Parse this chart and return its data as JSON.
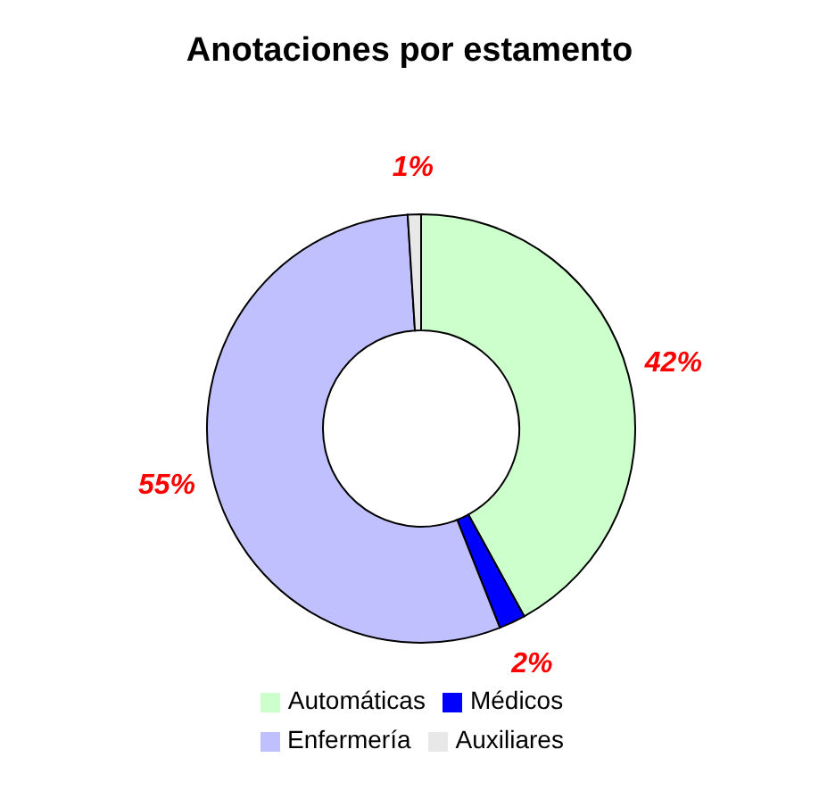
{
  "chart_data": {
    "type": "donut",
    "title": "Anotaciones por estamento",
    "categories": [
      "Automáticas",
      "Médicos",
      "Enfermería",
      "Auxiliares"
    ],
    "values": [
      42,
      2,
      55,
      1
    ],
    "colors": [
      "#ccffcc",
      "#0000ff",
      "#c0c0ff",
      "#e8e8e8"
    ],
    "value_labels": [
      "42%",
      "2%",
      "55%",
      "1%"
    ],
    "legend": "bottom"
  }
}
